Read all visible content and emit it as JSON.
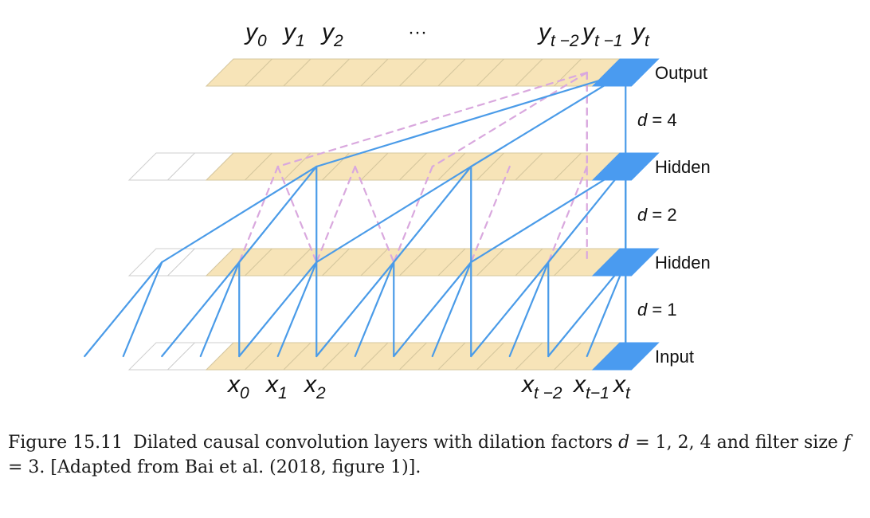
{
  "layers": [
    {
      "name": "output",
      "label": "Output"
    },
    {
      "name": "hidden-2",
      "label": "Hidden"
    },
    {
      "name": "hidden-1",
      "label": "Hidden"
    },
    {
      "name": "input",
      "label": "Input"
    }
  ],
  "dilations": [
    {
      "label": "d = 4",
      "d": 4
    },
    {
      "label": "d = 2",
      "d": 2
    },
    {
      "label": "d = 1",
      "d": 1
    }
  ],
  "filter_size": 3,
  "output_labels": [
    {
      "base": "y",
      "sub": "0"
    },
    {
      "base": "y",
      "sub": "1"
    },
    {
      "base": "y",
      "sub": "2"
    },
    {
      "base": "y",
      "sub": "t −2"
    },
    {
      "base": "y",
      "sub": "t −1"
    },
    {
      "base": "y",
      "sub": "t"
    }
  ],
  "ellipsis": "···",
  "input_labels": [
    {
      "base": "x",
      "sub": "0"
    },
    {
      "base": "x",
      "sub": "1"
    },
    {
      "base": "x",
      "sub": "2"
    },
    {
      "base": "x",
      "sub": "t −2"
    },
    {
      "base": "x",
      "sub": "t−1"
    },
    {
      "base": "x",
      "sub": "t"
    }
  ],
  "colors": {
    "cell_fill": "#f7e4b8",
    "cell_stroke": "#d6c79e",
    "current_fill": "#4a9bf0",
    "connection": "#4a9be8",
    "dashed": "#d9a8de",
    "padding_stroke": "#cfcfcf"
  },
  "caption": {
    "figure_number": "Figure 15.11",
    "text_1": "Dilated causal convolution layers with dilation factors",
    "math_1": "d",
    "text_2": "= 1, 2, 4 and filter size",
    "math_2": "f",
    "text_3": "= 3. [Adapted from Bai et al. (2018, figure 1)]."
  }
}
